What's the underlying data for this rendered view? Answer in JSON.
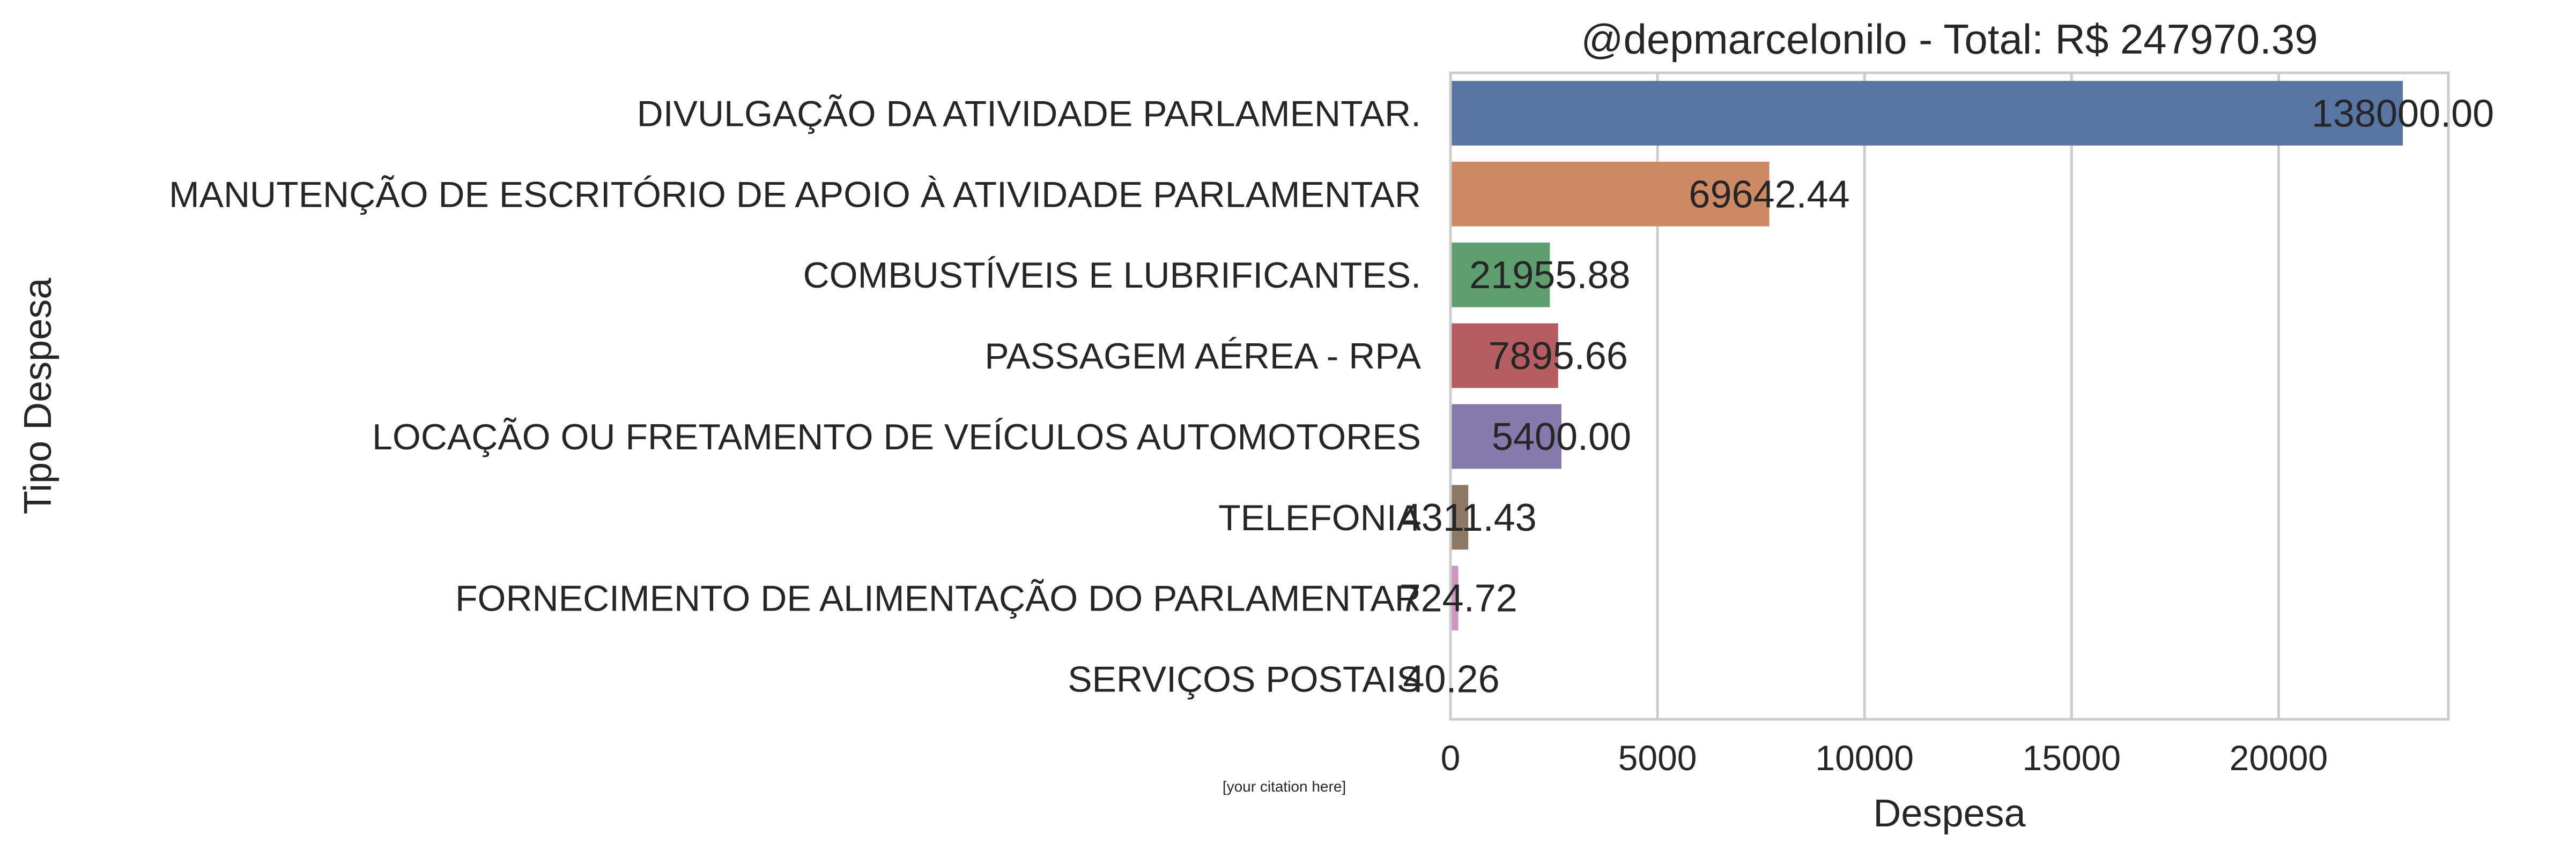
{
  "chart_data": {
    "type": "bar",
    "orientation": "horizontal",
    "title": "@depmarcelonilo - Total: R$ 247970.39",
    "xlabel": "Despesa",
    "ylabel": "Tipo Despesa",
    "xlim": [
      0,
      24100
    ],
    "x_ticks": [
      0,
      5000,
      10000,
      15000,
      20000
    ],
    "grid": "vertical",
    "categories": [
      "DIVULGAÇÃO DA ATIVIDADE PARLAMENTAR.",
      "MANUTENÇÃO DE ESCRITÓRIO DE APOIO À ATIVIDADE PARLAMENTAR",
      "COMBUSTÍVEIS E LUBRIFICANTES.",
      "PASSAGEM AÉREA - RPA",
      "LOCAÇÃO OU FRETAMENTO DE VEÍCULOS AUTOMOTORES",
      "TELEFONIA",
      "FORNECIMENTO DE ALIMENTAÇÃO DO PARLAMENTAR",
      "SERVIÇOS POSTAIS"
    ],
    "values": [
      23000,
      7700,
      2400,
      2600,
      2680,
      430,
      190,
      20
    ],
    "value_labels": [
      "138000.00",
      "69642.44",
      "21955.88",
      "7895.66",
      "5400.00",
      "4311.43",
      "724.72",
      "40.26"
    ],
    "colors": [
      "#5875a4",
      "#cc8963",
      "#5f9e6e",
      "#b55d60",
      "#857aab",
      "#8d7866",
      "#d095bf",
      "#8c8c8c"
    ]
  },
  "citation": "[your citation here]"
}
